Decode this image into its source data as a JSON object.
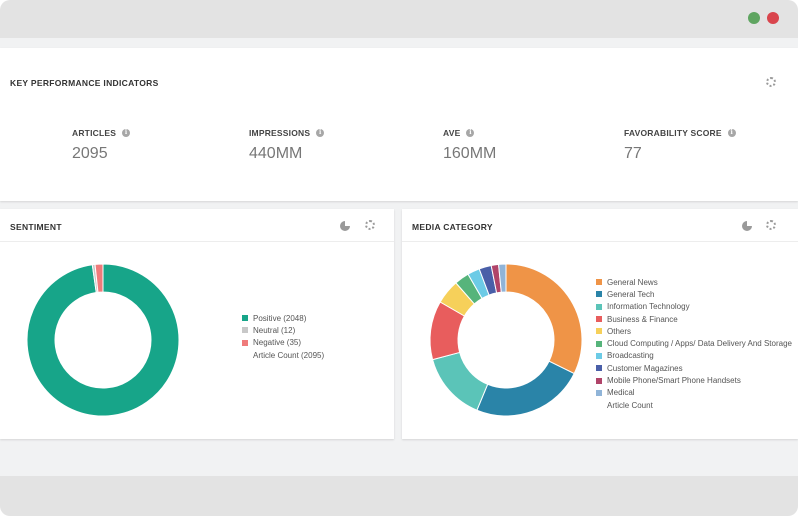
{
  "window": {
    "controls": [
      {
        "name": "maximize",
        "color": "#5fa561"
      },
      {
        "name": "close",
        "color": "#d9454d"
      }
    ]
  },
  "kpi": {
    "title": "KEY PERFORMANCE INDICATORS",
    "items": [
      {
        "label": "ARTICLES",
        "value": "2095"
      },
      {
        "label": "IMPRESSIONS",
        "value": "440MM"
      },
      {
        "label": "AVE",
        "value": "160MM"
      },
      {
        "label": "FAVORABILITY SCORE",
        "value": "77"
      }
    ]
  },
  "sentiment": {
    "title": "SENTIMENT",
    "legend": [
      {
        "label": "Positive (2048)",
        "color": "#17a589"
      },
      {
        "label": "Neutral (12)",
        "color": "#c8c8c8"
      },
      {
        "label": "Negative (35)",
        "color": "#ef7b7b"
      },
      {
        "label": "Article Count (2095)",
        "color": ""
      }
    ],
    "chart_data": {
      "type": "pie",
      "slices": [
        {
          "name": "Positive",
          "value": 2048,
          "color": "#17a589"
        },
        {
          "name": "Neutral",
          "value": 12,
          "color": "#c8c8c8"
        },
        {
          "name": "Negative",
          "value": 35,
          "color": "#ef7b7b"
        }
      ],
      "donut": true
    }
  },
  "media": {
    "title": "MEDIA CATEGORY",
    "legend": [
      {
        "label": "General News",
        "color": "#ef9447"
      },
      {
        "label": "General Tech",
        "color": "#2a84a8"
      },
      {
        "label": "Information Technology",
        "color": "#5bc4b8"
      },
      {
        "label": "Business & Finance",
        "color": "#e85d5d"
      },
      {
        "label": "Others",
        "color": "#f6d05a"
      },
      {
        "label": "Cloud Computing / Apps/ Data Delivery And Storage",
        "color": "#56b47b"
      },
      {
        "label": "Broadcasting",
        "color": "#6ccbe6"
      },
      {
        "label": "Customer Magazines",
        "color": "#4a5fa8"
      },
      {
        "label": "Mobile Phone/Smart Phone Handsets",
        "color": "#b04469"
      },
      {
        "label": "Medical",
        "color": "#90b4d8"
      },
      {
        "label": "Article Count",
        "color": ""
      }
    ],
    "chart_data": {
      "type": "pie",
      "donut": true,
      "slices": [
        {
          "name": "General News",
          "value": 31,
          "color": "#ef9447"
        },
        {
          "name": "General Tech",
          "value": 23,
          "color": "#2a84a8"
        },
        {
          "name": "Information Technology",
          "value": 14,
          "color": "#5bc4b8"
        },
        {
          "name": "Business & Finance",
          "value": 12,
          "color": "#e85d5d"
        },
        {
          "name": "Others",
          "value": 5,
          "color": "#f6d05a"
        },
        {
          "name": "Cloud Computing / Apps/ Data Delivery And Storage",
          "value": 3,
          "color": "#56b47b"
        },
        {
          "name": "Broadcasting",
          "value": 2.5,
          "color": "#6ccbe6"
        },
        {
          "name": "Customer Magazines",
          "value": 2.5,
          "color": "#4a5fa8"
        },
        {
          "name": "Mobile Phone/Smart Phone Handsets",
          "value": 1.5,
          "color": "#b04469"
        },
        {
          "name": "Medical",
          "value": 1.5,
          "color": "#90b4d8"
        }
      ]
    }
  }
}
